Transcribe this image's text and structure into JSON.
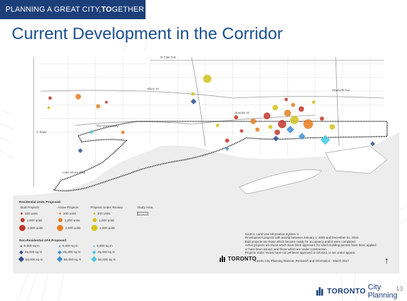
{
  "banner": {
    "prefix": "PLANNING A GREAT CITY, ",
    "bold": "TO",
    "suffix": "GETHER"
  },
  "title": "Current Development in the Corridor",
  "map_labels": {
    "st_clair": "St Clair Ave",
    "bloor": "Bloor St",
    "danforth": "Danforth Ave",
    "queensway": "The Queensway",
    "dundas": "Dundas St",
    "gardiner": "G Expy",
    "lake_shore": "Lake Shore Blvd"
  },
  "legend": {
    "residential_heading": "Residential Units Proposed:",
    "columns": [
      "Built Projects",
      "Active Projects",
      "Projects Under Review",
      "Study Area"
    ],
    "residential_rows": [
      "200 units",
      "1,000 units",
      "2,000 units"
    ],
    "nonres_heading": "Non-Residential GFA Proposed:",
    "nonres_rows": [
      "5,000 sq m",
      "25,000 sq m",
      "50,000 sq m"
    ],
    "colors": {
      "built": "#c0392b",
      "active": "#e67e22",
      "review": "#d4c21d",
      "built_nonres": "#2c4e8c",
      "active_nonres": "#3e8fd1",
      "review_nonres": "#45c8e0"
    }
  },
  "source": {
    "lines": [
      "Source: Land Use Information System II",
      "Development projects with activity between January 1, 2006 and December 31, 2016.",
      "Built projects are those which became ready for occupancy and/or were completed.",
      "Active projects are those which have been approved, for which building permits have been applied",
      "or have been issued, and those which are under construction.",
      "Projects under review have not yet been approved or refused, or are under appeal."
    ],
    "credit": "Toronto City Planning Division, Research and Information - March 2017"
  },
  "logo_small": "TORONTO",
  "footer": {
    "toronto": "TORONTO",
    "city_planning": "City Planning"
  },
  "page_number": "13",
  "icons": {
    "north_arrow": "north-arrow-icon",
    "logo": "toronto-logo-icon"
  }
}
